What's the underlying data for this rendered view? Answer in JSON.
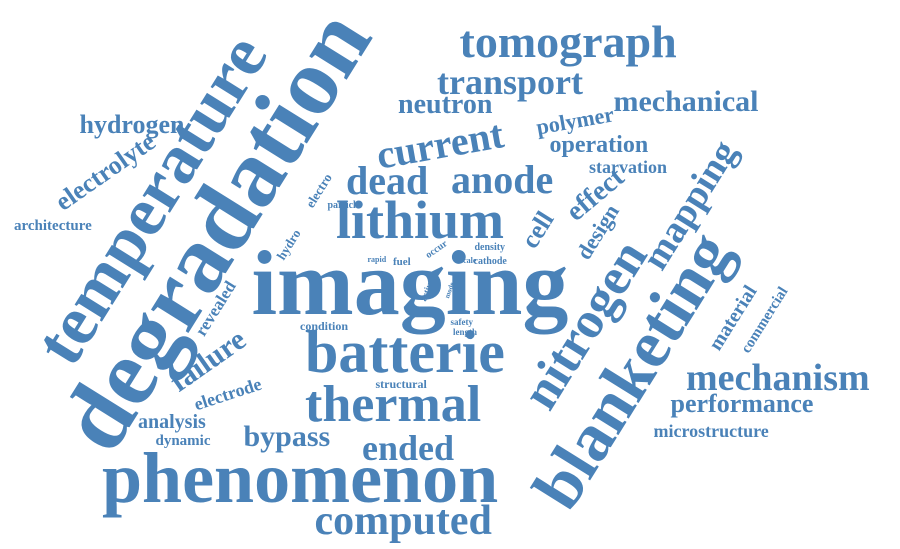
{
  "colors": {
    "word": "#4a82b8",
    "background": "#ffffff"
  },
  "words": [
    {
      "text": "degradation"
    },
    {
      "text": "imaging"
    },
    {
      "text": "phenomenon"
    },
    {
      "text": "temperature"
    },
    {
      "text": "blanketing"
    },
    {
      "text": "batterie"
    },
    {
      "text": "lithium"
    },
    {
      "text": "nitrogen"
    },
    {
      "text": "thermal"
    },
    {
      "text": "tomograph"
    },
    {
      "text": "computed"
    },
    {
      "text": "mechanism"
    },
    {
      "text": "current"
    },
    {
      "text": "anode"
    },
    {
      "text": "dead"
    },
    {
      "text": "transport"
    },
    {
      "text": "mapping"
    },
    {
      "text": "ended"
    },
    {
      "text": "bypass"
    },
    {
      "text": "mechanical"
    },
    {
      "text": "neutron"
    },
    {
      "text": "failure"
    },
    {
      "text": "cell"
    },
    {
      "text": "effect"
    },
    {
      "text": "electrolyte"
    },
    {
      "text": "hydrogen"
    },
    {
      "text": "performance"
    },
    {
      "text": "operation"
    },
    {
      "text": "design"
    },
    {
      "text": "polymer"
    },
    {
      "text": "material"
    },
    {
      "text": "analysis"
    },
    {
      "text": "electrode"
    },
    {
      "text": "starvation"
    },
    {
      "text": "microstructure"
    },
    {
      "text": "revealed"
    },
    {
      "text": "dynamic"
    },
    {
      "text": "commercial"
    },
    {
      "text": "architecture"
    },
    {
      "text": "electro"
    },
    {
      "text": "hydro"
    },
    {
      "text": "condition"
    },
    {
      "text": "structural"
    },
    {
      "text": "fuel"
    },
    {
      "text": "occur"
    },
    {
      "text": "cathode"
    },
    {
      "text": "density"
    },
    {
      "text": "particle"
    },
    {
      "text": "safety"
    },
    {
      "text": "length"
    },
    {
      "text": "active"
    },
    {
      "text": "rapid"
    },
    {
      "text": "scale"
    },
    {
      "text": "mode"
    }
  ]
}
